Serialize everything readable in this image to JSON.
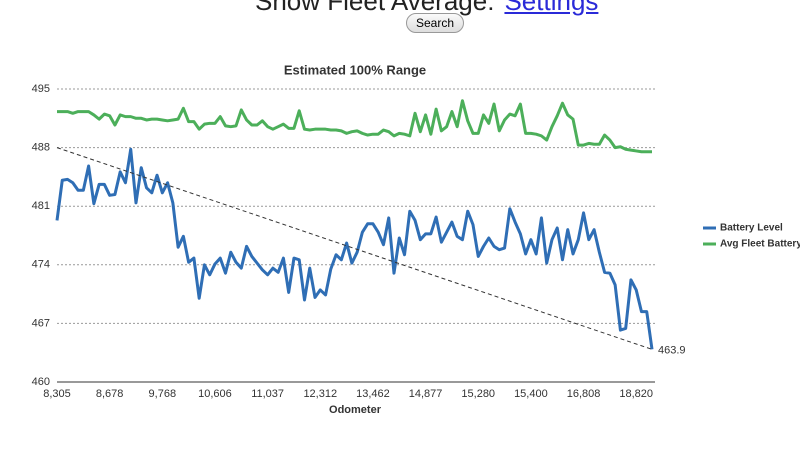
{
  "header": {
    "title": "Show Fleet Average:",
    "link": "Settings",
    "button": "Search"
  },
  "chart_data": {
    "type": "line",
    "title": "Estimated 100% Range",
    "x_label": "Odometer",
    "categories": [
      "8,305",
      null,
      null,
      null,
      null,
      null,
      null,
      null,
      null,
      null,
      "8,678",
      null,
      null,
      null,
      null,
      null,
      null,
      null,
      null,
      null,
      "9,768",
      null,
      null,
      null,
      null,
      null,
      null,
      null,
      null,
      null,
      "10,606",
      null,
      null,
      null,
      null,
      null,
      null,
      null,
      null,
      null,
      "11,037",
      null,
      null,
      null,
      null,
      null,
      null,
      null,
      null,
      null,
      "12,312",
      null,
      null,
      null,
      null,
      null,
      null,
      null,
      null,
      null,
      "13,462",
      null,
      null,
      null,
      null,
      null,
      null,
      null,
      null,
      null,
      "14,877",
      null,
      null,
      null,
      null,
      null,
      null,
      null,
      null,
      null,
      "15,280",
      null,
      null,
      null,
      null,
      null,
      null,
      null,
      null,
      null,
      "15,400",
      null,
      null,
      null,
      null,
      null,
      null,
      null,
      null,
      null,
      "16,808",
      null,
      null,
      null,
      null,
      null,
      null,
      null,
      null,
      null,
      "18,820",
      null,
      null,
      null
    ],
    "series": [
      {
        "name": "Battery Level",
        "color": "#2f6eb5",
        "values": [
          479.3,
          484.1,
          484.2,
          483.8,
          482.9,
          482.9,
          485.8,
          481.3,
          483.6,
          483.6,
          482.3,
          482.4,
          485.1,
          483.8,
          487.8,
          481.4,
          485.6,
          483.2,
          482.6,
          484.7,
          482.6,
          483.8,
          481.4,
          476.1,
          477.4,
          474.3,
          474.8,
          470.0,
          474.0,
          472.8,
          474.1,
          474.8,
          473.0,
          475.5,
          474.3,
          473.6,
          476.2,
          475.0,
          474.2,
          473.4,
          472.8,
          473.6,
          473.1,
          474.8,
          470.7,
          474.8,
          474.6,
          469.8,
          473.6,
          470.1,
          471.0,
          470.4,
          473.5,
          475.2,
          474.6,
          476.6,
          474.2,
          475.5,
          477.9,
          478.9,
          478.9,
          477.9,
          476.4,
          479.6,
          473.0,
          477.2,
          475.2,
          480.4,
          479.3,
          477.0,
          477.7,
          477.7,
          479.7,
          476.7,
          477.9,
          479.1,
          477.4,
          477.0,
          480.4,
          478.8,
          475.0,
          476.2,
          477.2,
          476.2,
          475.8,
          476.0,
          480.7,
          479.1,
          477.7,
          475.3,
          477.0,
          475.3,
          479.6,
          474.2,
          477.0,
          478.4,
          474.6,
          478.2,
          475.3,
          477.0,
          480.2,
          477.0,
          478.2,
          475.5,
          473.1,
          473.0,
          471.6,
          466.2,
          466.4,
          472.2,
          471.0,
          468.4,
          468.4,
          463.9
        ]
      },
      {
        "name": "Avg Fleet Battery",
        "color": "#4caf5a",
        "values": [
          492.3,
          492.3,
          492.3,
          492.1,
          492.3,
          492.3,
          492.3,
          491.9,
          491.4,
          492.0,
          491.8,
          490.7,
          491.9,
          491.7,
          491.7,
          491.5,
          491.5,
          491.3,
          491.4,
          491.4,
          491.3,
          491.2,
          491.3,
          491.4,
          492.7,
          491.1,
          491.1,
          490.2,
          490.8,
          490.9,
          490.9,
          491.7,
          490.6,
          490.5,
          490.6,
          492.5,
          491.3,
          490.7,
          490.7,
          491.2,
          490.5,
          490.2,
          490.5,
          490.8,
          490.3,
          490.3,
          492.4,
          490.2,
          490.1,
          490.2,
          490.2,
          490.2,
          490.1,
          490.1,
          490.0,
          489.7,
          489.9,
          490.0,
          489.7,
          489.5,
          489.6,
          489.6,
          490.1,
          489.9,
          489.4,
          489.7,
          489.6,
          489.4,
          492.1,
          489.9,
          491.9,
          489.6,
          492.6,
          490.0,
          490.5,
          492.3,
          490.5,
          493.6,
          491.2,
          489.7,
          489.7,
          491.9,
          490.9,
          493.2,
          490.0,
          491.3,
          492.0,
          491.8,
          493.2,
          489.7,
          489.7,
          489.6,
          489.4,
          488.9,
          490.5,
          491.8,
          493.3,
          491.9,
          491.4,
          488.3,
          488.3,
          488.5,
          488.4,
          488.4,
          489.5,
          488.9,
          488.0,
          488.1,
          487.8,
          487.7,
          487.6,
          487.5,
          487.5,
          487.5
        ]
      }
    ],
    "trendline": {
      "values": [
        488,
        463.9
      ]
    },
    "ylim": [
      460,
      495
    ],
    "yticks": [
      460,
      467,
      474,
      481,
      488,
      495
    ],
    "grid": true,
    "legend": "right"
  }
}
